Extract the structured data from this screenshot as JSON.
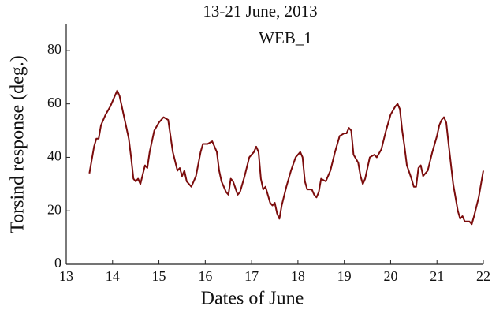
{
  "chart_data": {
    "type": "line",
    "title": "13-21 June, 2013",
    "annotation": "WEB_1",
    "x_label": "Dates of June",
    "y_label": "Torsind response (deg.)",
    "color": "#7b0c0c",
    "xlim": [
      13,
      22
    ],
    "xticks": [
      13,
      14,
      15,
      16,
      17,
      18,
      19,
      20,
      21,
      22
    ],
    "ylim": [
      0,
      90
    ],
    "yticks": [
      0,
      20,
      40,
      60,
      80
    ],
    "x": [
      13.5,
      13.6,
      13.65,
      13.7,
      13.75,
      13.85,
      13.95,
      14.05,
      14.1,
      14.15,
      14.25,
      14.35,
      14.4,
      14.45,
      14.5,
      14.55,
      14.6,
      14.7,
      14.75,
      14.8,
      14.9,
      15.0,
      15.1,
      15.2,
      15.25,
      15.3,
      15.4,
      15.45,
      15.5,
      15.55,
      15.6,
      15.7,
      15.8,
      15.9,
      15.95,
      16.05,
      16.15,
      16.25,
      16.3,
      16.35,
      16.45,
      16.5,
      16.55,
      16.6,
      16.7,
      16.75,
      16.85,
      16.95,
      17.05,
      17.1,
      17.15,
      17.2,
      17.25,
      17.3,
      17.4,
      17.45,
      17.5,
      17.55,
      17.6,
      17.65,
      17.75,
      17.85,
      17.95,
      18.05,
      18.1,
      18.15,
      18.2,
      18.3,
      18.35,
      18.4,
      18.45,
      18.5,
      18.6,
      18.7,
      18.8,
      18.9,
      19.0,
      19.05,
      19.1,
      19.15,
      19.2,
      19.3,
      19.35,
      19.4,
      19.45,
      19.55,
      19.65,
      19.7,
      19.8,
      19.9,
      20.0,
      20.1,
      20.15,
      20.2,
      20.25,
      20.3,
      20.35,
      20.45,
      20.5,
      20.55,
      20.6,
      20.65,
      20.7,
      20.8,
      20.9,
      21.0,
      21.05,
      21.1,
      21.15,
      21.2,
      21.25,
      21.35,
      21.45,
      21.5,
      21.55,
      21.6,
      21.7,
      21.75,
      21.8,
      21.9,
      22.0
    ],
    "values": [
      34,
      44,
      47,
      47,
      52,
      56,
      59,
      63,
      65,
      63,
      55,
      47,
      40,
      32,
      31,
      32,
      30,
      37,
      36,
      42,
      50,
      53,
      55,
      54,
      48,
      42,
      35,
      36,
      33,
      35,
      31,
      29,
      33,
      42,
      45,
      45,
      46,
      42,
      35,
      31,
      27,
      26,
      32,
      31,
      26,
      27,
      33,
      40,
      42,
      44,
      42,
      32,
      28,
      29,
      23,
      22,
      23,
      19,
      17,
      22,
      29,
      35,
      40,
      42,
      40,
      31,
      28,
      28,
      26,
      25,
      27,
      32,
      31,
      35,
      42,
      48,
      49,
      49,
      51,
      50,
      41,
      38,
      33,
      30,
      32,
      40,
      41,
      40,
      43,
      50,
      56,
      59,
      60,
      58,
      50,
      44,
      37,
      32,
      29,
      29,
      36,
      37,
      33,
      35,
      42,
      48,
      52,
      54,
      55,
      53,
      45,
      30,
      20,
      17,
      18,
      16,
      16,
      15,
      18,
      25,
      35
    ]
  }
}
